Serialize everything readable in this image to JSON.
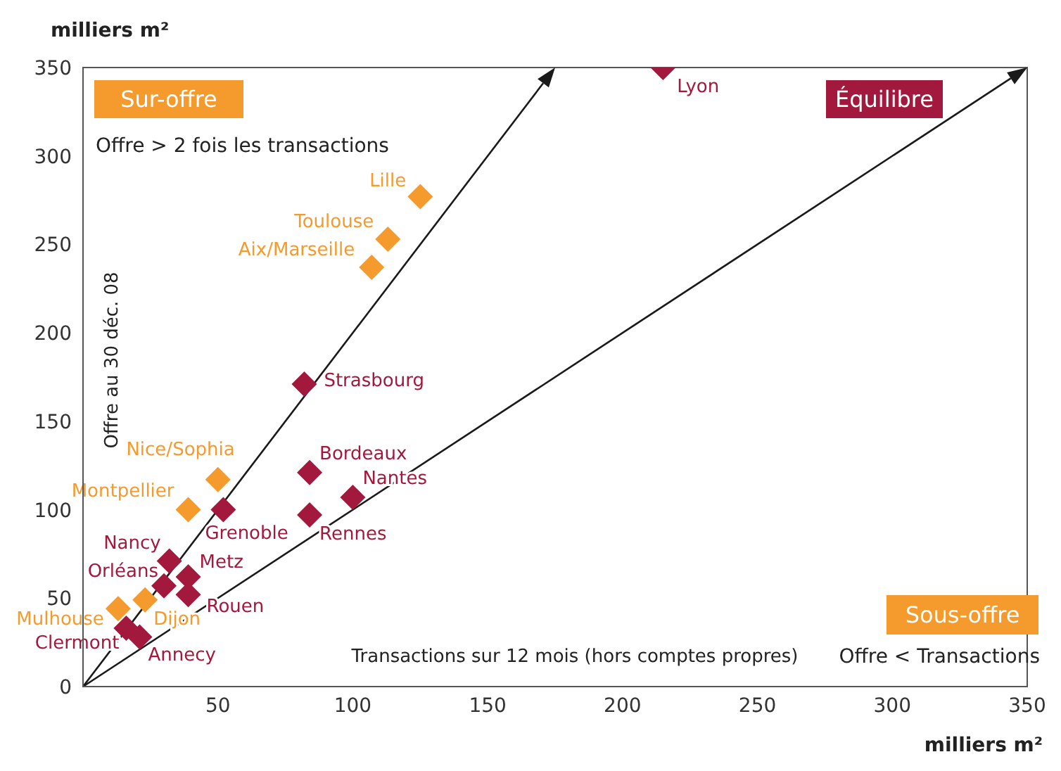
{
  "chart_data": {
    "type": "scatter",
    "xlabel": "Transactions sur 12 mois (hors comptes propres)",
    "ylabel": "Offre au 30 déc. 08",
    "xlim": [
      0,
      350
    ],
    "xticks": [
      50,
      100,
      150,
      200,
      250,
      300,
      350
    ],
    "ylim": [
      0,
      350
    ],
    "yticks": [
      0,
      50,
      100,
      150,
      200,
      250,
      300,
      350
    ],
    "marker": "diamond",
    "grid": false,
    "series": [
      {
        "color": "#f59a2c",
        "x": [
          125,
          113,
          107,
          50,
          39,
          23,
          13
        ],
        "values": [
          277,
          253,
          237,
          117,
          100,
          49,
          44
        ]
      },
      {
        "color": "#a3183d",
        "x": [
          215,
          82,
          84,
          84,
          100,
          52,
          32,
          30,
          39,
          39,
          16,
          21
        ],
        "values": [
          350,
          171,
          121,
          97,
          107,
          100,
          71,
          57,
          62,
          52,
          33,
          28
        ]
      }
    ],
    "annotations": [
      "milliers m²",
      "milliers m²",
      "Sur-offre",
      "Équilibre",
      "Sous-offre",
      "Offre > 2 fois les transactions",
      "Offre < Transactions",
      {
        "text": "Lyon",
        "x": 215,
        "y": 350
      },
      {
        "text": "Lille",
        "x": 125,
        "y": 277
      },
      {
        "text": "Toulouse",
        "x": 113,
        "y": 253
      },
      {
        "text": "Aix/Marseille",
        "x": 107,
        "y": 237
      },
      {
        "text": "Strasbourg",
        "x": 82,
        "y": 171
      },
      {
        "text": "Bordeaux",
        "x": 84,
        "y": 121
      },
      {
        "text": "Nantes",
        "x": 100,
        "y": 107
      },
      {
        "text": "Rennes",
        "x": 84,
        "y": 97
      },
      {
        "text": "Nice/Sophia",
        "x": 50,
        "y": 117
      },
      {
        "text": "Montpellier",
        "x": 39,
        "y": 100
      },
      {
        "text": "Grenoble",
        "x": 52,
        "y": 100
      },
      {
        "text": "Nancy",
        "x": 32,
        "y": 71
      },
      {
        "text": "Orléans",
        "x": 30,
        "y": 57
      },
      {
        "text": "Metz",
        "x": 39,
        "y": 62
      },
      {
        "text": "Rouen",
        "x": 39,
        "y": 52
      },
      {
        "text": "Dijon",
        "x": 23,
        "y": 49
      },
      {
        "text": "Mulhouse",
        "x": 13,
        "y": 44
      },
      {
        "text": "Clermont",
        "x": 16,
        "y": 33
      },
      {
        "text": "Annecy",
        "x": 21,
        "y": 28
      }
    ]
  }
}
